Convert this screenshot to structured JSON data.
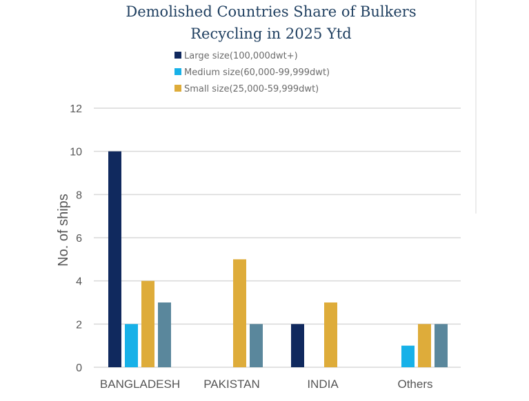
{
  "chart_data": {
    "type": "bar",
    "title_lines": [
      "Demolished Countries Share of Bulkers",
      "Recycling in 2025 Ytd"
    ],
    "ylabel": "No. of ships",
    "xlabel": "",
    "ylim": [
      0,
      12
    ],
    "yticks": [
      0,
      2,
      4,
      6,
      8,
      10,
      12
    ],
    "categories": [
      "BANGLADESH",
      "PAKISTAN",
      "INDIA",
      "Others"
    ],
    "series": [
      {
        "name": "Large size(100,000dwt+)",
        "color": "#10295e",
        "values": [
          10,
          0,
          2,
          0
        ]
      },
      {
        "name": "Medium size(60,000-99,999dwt)",
        "color": "#17b1e8",
        "values": [
          2,
          0,
          0,
          1
        ]
      },
      {
        "name": "Small size(25,000-59,999dwt)",
        "color": "#deac3a",
        "values": [
          4,
          5,
          3,
          2
        ]
      },
      {
        "name": "",
        "color": "#5a879c",
        "values": [
          3,
          2,
          0,
          2
        ]
      }
    ],
    "grid": true,
    "legend_position": "top-left"
  }
}
